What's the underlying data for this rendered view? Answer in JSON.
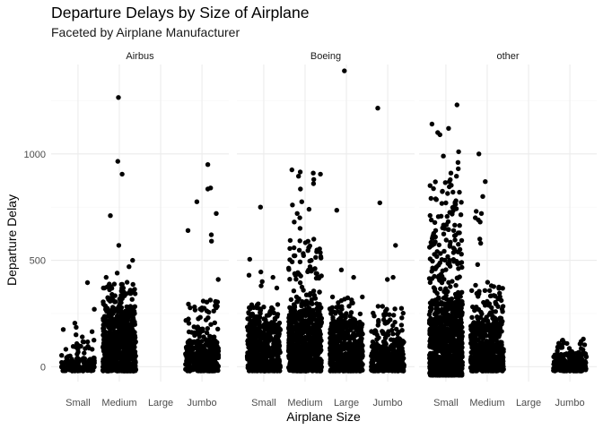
{
  "title": "Departure Delays by Size of Airplane",
  "subtitle": "Faceted by Airplane Manufacturer",
  "xlabel": "Airplane Size",
  "ylabel": "Departure Delay",
  "chart_data": {
    "type": "scatter",
    "jitter": true,
    "categories": [
      "Small",
      "Medium",
      "Large",
      "Jumbo"
    ],
    "facets": [
      "Airbus",
      "Boeing",
      "other"
    ],
    "ylim": [
      -70,
      1420
    ],
    "yticks": [
      0,
      500,
      1000
    ],
    "grid": true,
    "legend": "none",
    "series": [
      {
        "facet": "Airbus",
        "groups": [
          {
            "category": "Small",
            "dense_range": [
              -20,
              40
            ],
            "spread_range": [
              -20,
              120
            ],
            "outliers": [
              270,
              205,
              185,
              175,
              165,
              150,
              140,
              125,
              395
            ]
          },
          {
            "category": "Medium",
            "dense_range": [
              -20,
              260
            ],
            "spread_range": [
              -20,
              400
            ],
            "outliers": [
              1265,
              965,
              905,
              710,
              570,
              500,
              470,
              440,
              420
            ]
          },
          {
            "category": "Large",
            "dense_range": null,
            "spread_range": null,
            "outliers": []
          },
          {
            "category": "Jumbo",
            "dense_range": [
              -20,
              120
            ],
            "spread_range": [
              -20,
              320
            ],
            "outliers": [
              950,
              840,
              835,
              775,
              720,
              640,
              620,
              590,
              410
            ]
          }
        ]
      },
      {
        "facet": "Boeing",
        "groups": [
          {
            "category": "Small",
            "dense_range": [
              -20,
              200
            ],
            "spread_range": [
              -20,
              300
            ],
            "outliers": [
              750,
              505,
              445,
              430,
              420,
              400,
              380,
              370
            ]
          },
          {
            "category": "Medium",
            "dense_range": [
              -20,
              260
            ],
            "spread_range": [
              -20,
              600
            ],
            "outliers": [
              925,
              915,
              910,
              905,
              895,
              880,
              860,
              835,
              775,
              760,
              740,
              720,
              700,
              680,
              650,
              500
            ]
          },
          {
            "category": "Large",
            "dense_range": [
              -20,
              200
            ],
            "spread_range": [
              -20,
              330
            ],
            "outliers": [
              1390,
              735,
              455,
              420
            ]
          },
          {
            "category": "Jumbo",
            "dense_range": [
              -20,
              120
            ],
            "spread_range": [
              -20,
              300
            ],
            "outliers": [
              1215,
              770,
              570,
              420,
              410
            ]
          }
        ]
      },
      {
        "facet": "other",
        "groups": [
          {
            "category": "Small",
            "dense_range": [
              -40,
              300
            ],
            "spread_range": [
              -60,
              900
            ],
            "outliers": [
              1230,
              1140,
              1120,
              1100,
              1090,
              1010,
              990,
              960,
              930,
              910
            ]
          },
          {
            "category": "Medium",
            "dense_range": [
              -20,
              200
            ],
            "spread_range": [
              -50,
              400
            ],
            "outliers": [
              1000,
              870,
              800,
              730,
              720,
              700,
              690,
              680,
              600,
              580,
              480
            ]
          },
          {
            "category": "Large",
            "dense_range": null,
            "spread_range": null,
            "outliers": []
          },
          {
            "category": "Jumbo",
            "dense_range": [
              -20,
              60
            ],
            "spread_range": [
              -20,
              130
            ],
            "outliers": [
              130,
              125,
              110,
              100
            ]
          }
        ]
      }
    ]
  }
}
